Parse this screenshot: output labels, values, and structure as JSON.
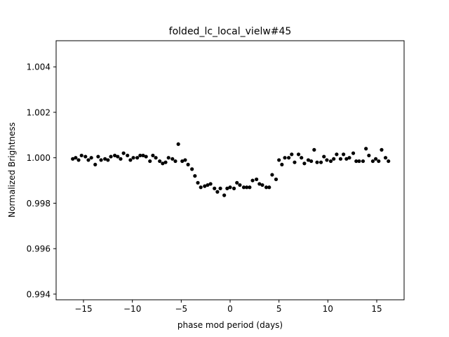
{
  "chart_data": {
    "type": "scatter",
    "title": "folded_lc_local_vielw#45",
    "xlabel": "phase mod period (days)",
    "ylabel": "Normalized Brightness",
    "xlim": [
      -17.8,
      17.8
    ],
    "ylim": [
      0.99375,
      1.00515
    ],
    "xticks": [
      -15,
      -10,
      -5,
      0,
      5,
      10,
      15
    ],
    "xtick_labels": [
      "−15",
      "−10",
      "−5",
      "0",
      "5",
      "10",
      "15"
    ],
    "yticks": [
      0.994,
      0.996,
      0.998,
      1.0,
      1.002,
      1.004
    ],
    "ytick_labels": [
      "0.994",
      "0.996",
      "0.998",
      "1.000",
      "1.002",
      "1.004"
    ],
    "grid": false,
    "marker_color": "#000000",
    "series": [
      {
        "x": [
          -16.1,
          -15.8,
          -15.5,
          -15.2,
          -14.8,
          -14.5,
          -14.2,
          -13.8,
          -13.5,
          -13.2,
          -12.8,
          -12.5,
          -12.2,
          -11.8,
          -11.5,
          -11.2,
          -10.9,
          -10.5,
          -10.2,
          -9.9,
          -9.5,
          -9.2,
          -8.9,
          -8.6,
          -8.2,
          -7.9,
          -7.6,
          -7.2,
          -6.9,
          -6.6,
          -6.3,
          -5.9,
          -5.6,
          -5.3,
          -4.9,
          -4.6,
          -4.3,
          -3.9,
          -3.6,
          -3.3,
          -3.0,
          -2.6,
          -2.3,
          -2.0,
          -1.6,
          -1.3,
          -1.0,
          -0.6,
          -0.3,
          0.0,
          0.4,
          0.7,
          1.0,
          1.4,
          1.7,
          2.0,
          2.3,
          2.7,
          3.0,
          3.3,
          3.7,
          4.0,
          4.3,
          4.7,
          5.0,
          5.3,
          5.6,
          6.0,
          6.3,
          6.6,
          7.0,
          7.3,
          7.6,
          8.0,
          8.3,
          8.6,
          8.9,
          9.3,
          9.6,
          9.9,
          10.3,
          10.6,
          10.9,
          11.3,
          11.6,
          11.9,
          12.2,
          12.6,
          12.9,
          13.2,
          13.6,
          13.9,
          14.2,
          14.6,
          14.9,
          15.2,
          15.5,
          15.9,
          16.2
        ],
        "y": [
          0.99995,
          1.0,
          0.9999,
          1.0001,
          1.00005,
          0.9999,
          1.0,
          0.9997,
          1.00005,
          0.9999,
          0.99995,
          0.9999,
          1.00005,
          1.0001,
          1.00005,
          0.99995,
          1.0002,
          1.0001,
          0.9999,
          1.0,
          1.0,
          1.0001,
          1.0001,
          1.00005,
          0.99985,
          1.0001,
          1.0,
          0.99985,
          0.99975,
          0.9998,
          1.0,
          0.99995,
          0.99985,
          1.0006,
          0.99985,
          0.9999,
          0.9997,
          0.9995,
          0.9992,
          0.9989,
          0.9987,
          0.99875,
          0.9988,
          0.99885,
          0.99865,
          0.9985,
          0.99865,
          0.99835,
          0.99865,
          0.9987,
          0.99865,
          0.9989,
          0.9988,
          0.9987,
          0.9987,
          0.9987,
          0.999,
          0.99905,
          0.99885,
          0.9988,
          0.9987,
          0.9987,
          0.99925,
          0.99905,
          0.9999,
          0.9997,
          1.0,
          1.0,
          1.00015,
          0.9998,
          1.00015,
          1.0,
          0.99975,
          0.9999,
          0.99985,
          1.00035,
          0.9998,
          0.9998,
          1.00005,
          0.9999,
          0.99985,
          0.99995,
          1.00015,
          0.99995,
          1.00015,
          0.99995,
          1.0,
          1.0002,
          0.99985,
          0.99985,
          0.99985,
          1.0004,
          1.0001,
          0.99985,
          0.99995,
          0.99985,
          1.00035,
          1.0,
          0.99985
        ]
      }
    ]
  }
}
